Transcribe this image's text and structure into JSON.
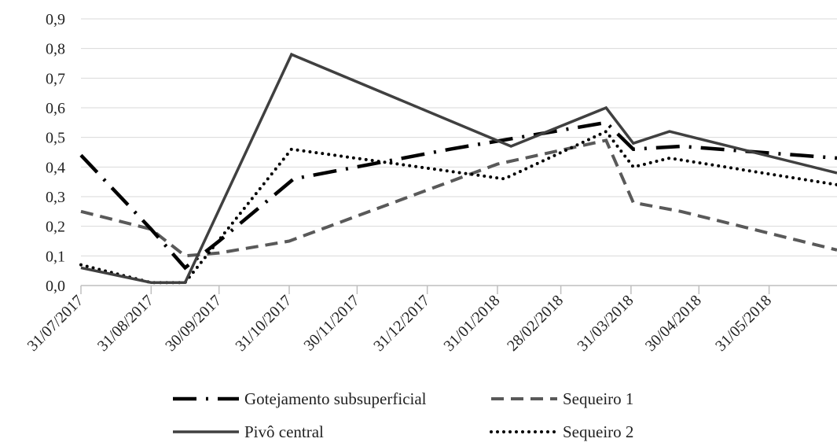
{
  "chart_data": {
    "type": "line",
    "title": "",
    "xlabel": "",
    "ylabel": "",
    "ylim": [
      0,
      0.9
    ],
    "y_ticks": [
      "0,0",
      "0,1",
      "0,2",
      "0,3",
      "0,4",
      "0,5",
      "0,6",
      "0,7",
      "0,8",
      "0,9"
    ],
    "x_ticks": [
      "31/07/2017",
      "31/08/2017",
      "30/09/2017",
      "31/10/2017",
      "30/11/2017",
      "31/12/2017",
      "31/01/2018",
      "28/02/2018",
      "31/03/2018",
      "30/04/2018",
      "31/05/2018"
    ],
    "xlim": [
      "2017-07-31",
      "2018-06-30"
    ],
    "grid": true,
    "legend_position": "bottom",
    "series": [
      {
        "name": "Gotejamento subsuperficial",
        "color": "#000000",
        "style": "long-dash-dot",
        "points": [
          [
            "2017-07-31",
            0.44
          ],
          [
            "2017-08-31",
            0.19
          ],
          [
            "2017-09-15",
            0.06
          ],
          [
            "2017-09-30",
            0.15
          ],
          [
            "2017-11-02",
            0.36
          ],
          [
            "2018-01-10",
            0.46
          ],
          [
            "2018-03-20",
            0.55
          ],
          [
            "2018-04-01",
            0.46
          ],
          [
            "2018-04-22",
            0.47
          ],
          [
            "2018-06-30",
            0.43
          ]
        ]
      },
      {
        "name": "Sequeiro 1",
        "color": "#595959",
        "style": "dash",
        "points": [
          [
            "2017-07-31",
            0.25
          ],
          [
            "2017-08-31",
            0.19
          ],
          [
            "2017-09-15",
            0.1
          ],
          [
            "2017-09-30",
            0.11
          ],
          [
            "2017-10-31",
            0.15
          ],
          [
            "2018-01-31",
            0.41
          ],
          [
            "2018-03-20",
            0.49
          ],
          [
            "2018-04-01",
            0.28
          ],
          [
            "2018-04-22",
            0.25
          ],
          [
            "2018-06-30",
            0.12
          ]
        ]
      },
      {
        "name": "Pivô central",
        "color": "#404040",
        "style": "solid",
        "points": [
          [
            "2017-07-31",
            0.06
          ],
          [
            "2017-08-31",
            0.01
          ],
          [
            "2017-09-15",
            0.01
          ],
          [
            "2017-11-01",
            0.78
          ],
          [
            "2018-02-06",
            0.47
          ],
          [
            "2018-03-20",
            0.6
          ],
          [
            "2018-04-01",
            0.48
          ],
          [
            "2018-04-17",
            0.52
          ],
          [
            "2018-06-30",
            0.38
          ]
        ]
      },
      {
        "name": "Sequeiro 2",
        "color": "#000000",
        "style": "dot",
        "points": [
          [
            "2017-07-31",
            0.07
          ],
          [
            "2017-08-31",
            0.01
          ],
          [
            "2017-09-15",
            0.01
          ],
          [
            "2017-11-01",
            0.46
          ],
          [
            "2018-02-03",
            0.36
          ],
          [
            "2018-03-20",
            0.52
          ],
          [
            "2018-04-01",
            0.4
          ],
          [
            "2018-04-17",
            0.43
          ],
          [
            "2018-06-30",
            0.34
          ]
        ]
      }
    ]
  }
}
